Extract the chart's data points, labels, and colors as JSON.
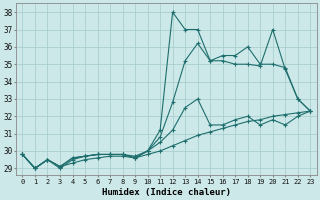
{
  "xlabel": "Humidex (Indice chaleur)",
  "bg_color": "#cde8e8",
  "grid_color": "#aacece",
  "line_color": "#1e6e6e",
  "xlim": [
    -0.5,
    23.5
  ],
  "ylim": [
    28.6,
    38.5
  ],
  "yticks": [
    29,
    30,
    31,
    32,
    33,
    34,
    35,
    36,
    37,
    38
  ],
  "xticks": [
    0,
    1,
    2,
    3,
    4,
    5,
    6,
    7,
    8,
    9,
    10,
    11,
    12,
    13,
    14,
    15,
    16,
    17,
    18,
    19,
    20,
    21,
    22,
    23
  ],
  "lines": [
    {
      "x": [
        0,
        1,
        2,
        3,
        4,
        5,
        6,
        7,
        8,
        9,
        10,
        11,
        12,
        13,
        14,
        15,
        16,
        17,
        18,
        19,
        20,
        21,
        22,
        23
      ],
      "y": [
        29.8,
        29.0,
        29.5,
        29.0,
        29.5,
        29.7,
        29.8,
        29.8,
        29.8,
        29.7,
        30.0,
        31.2,
        38.0,
        37.0,
        37.0,
        35.2,
        35.2,
        35.0,
        35.0,
        34.9,
        37.0,
        34.7,
        33.0,
        32.3
      ]
    },
    {
      "x": [
        0,
        1,
        2,
        3,
        4,
        5,
        6,
        7,
        8,
        9,
        10,
        11,
        12,
        13,
        14,
        15,
        16,
        17,
        18,
        19,
        20,
        21,
        22,
        23
      ],
      "y": [
        29.8,
        29.0,
        29.5,
        29.1,
        29.6,
        29.7,
        29.8,
        29.8,
        29.8,
        29.6,
        30.0,
        30.8,
        32.8,
        35.2,
        36.2,
        35.2,
        35.5,
        35.5,
        36.0,
        35.0,
        35.0,
        34.8,
        33.0,
        32.3
      ]
    },
    {
      "x": [
        0,
        1,
        2,
        3,
        4,
        5,
        6,
        7,
        8,
        9,
        10,
        11,
        12,
        13,
        14,
        15,
        16,
        17,
        18,
        19,
        20,
        21,
        22,
        23
      ],
      "y": [
        29.8,
        29.0,
        29.5,
        29.1,
        29.6,
        29.7,
        29.8,
        29.8,
        29.8,
        29.6,
        30.0,
        30.5,
        31.2,
        32.5,
        33.0,
        31.5,
        31.5,
        31.8,
        32.0,
        31.5,
        31.8,
        31.5,
        32.0,
        32.3
      ]
    },
    {
      "x": [
        0,
        1,
        2,
        3,
        4,
        5,
        6,
        7,
        8,
        9,
        10,
        11,
        12,
        13,
        14,
        15,
        16,
        17,
        18,
        19,
        20,
        21,
        22,
        23
      ],
      "y": [
        29.8,
        29.0,
        29.5,
        29.1,
        29.3,
        29.5,
        29.6,
        29.7,
        29.7,
        29.6,
        29.8,
        30.0,
        30.3,
        30.6,
        30.9,
        31.1,
        31.3,
        31.5,
        31.7,
        31.8,
        32.0,
        32.1,
        32.2,
        32.3
      ]
    }
  ]
}
